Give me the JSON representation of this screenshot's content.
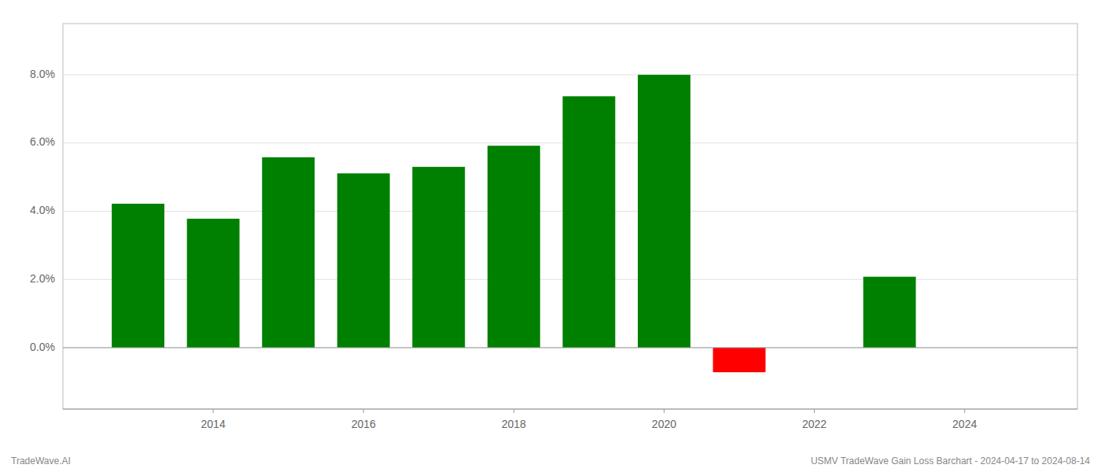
{
  "chart_data": {
    "type": "bar",
    "x": [
      2013,
      2014,
      2015,
      2016,
      2017,
      2018,
      2019,
      2020,
      2021,
      2023
    ],
    "values": [
      0.0422,
      0.0378,
      0.0558,
      0.0511,
      0.053,
      0.0592,
      0.0737,
      0.08,
      -0.0072,
      0.0208
    ],
    "colors": [
      "#008000",
      "#008000",
      "#008000",
      "#008000",
      "#008000",
      "#008000",
      "#008000",
      "#008000",
      "#ff0000",
      "#008000"
    ],
    "xlim": [
      2012.0,
      2025.5
    ],
    "xticks": [
      2014,
      2016,
      2018,
      2020,
      2022,
      2024
    ],
    "ylim": [
      -0.018,
      0.095
    ],
    "yticks": [
      {
        "value": 0.0,
        "label": "0.0%"
      },
      {
        "value": 0.02,
        "label": "2.0%"
      },
      {
        "value": 0.04,
        "label": "4.0%"
      },
      {
        "value": 0.06,
        "label": "6.0%"
      },
      {
        "value": 0.08,
        "label": "8.0%"
      }
    ],
    "grid": true,
    "annotations": [
      "TradeWave.AI",
      "USMV TradeWave Gain Loss Barchart - 2024-04-17 to 2024-08-14"
    ]
  }
}
